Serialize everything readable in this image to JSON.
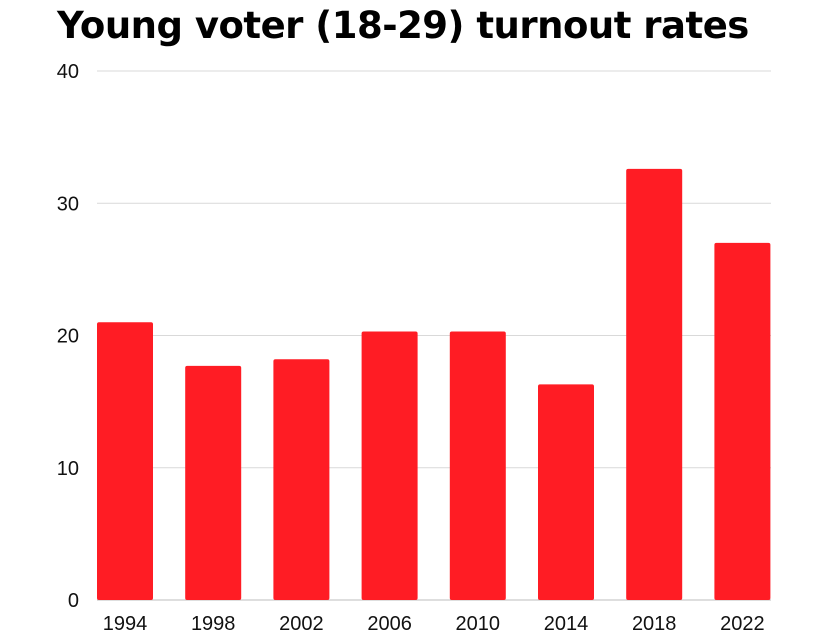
{
  "chart_data": {
    "type": "bar",
    "title": "Young voter (18-29) turnout rates",
    "xlabel": "",
    "ylabel": "",
    "categories": [
      "1994",
      "1998",
      "2002",
      "2006",
      "2010",
      "2014",
      "2018",
      "2022"
    ],
    "values": [
      21,
      17.7,
      18.2,
      20.3,
      20.3,
      16.3,
      32.6,
      27
    ],
    "ylim": [
      0,
      40
    ],
    "yticks": [
      0,
      10,
      20,
      30,
      40
    ],
    "grid": true,
    "bar_color": "#ff1c24",
    "grid_color": "#d9d9d9"
  }
}
